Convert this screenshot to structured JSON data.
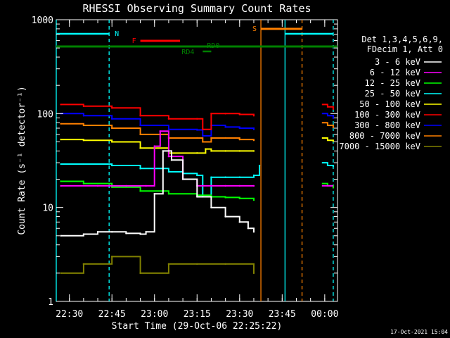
{
  "chart_data": {
    "type": "line",
    "title": "RHESSI Observing Summary Count Rates",
    "xlabel": "Start Time (29-Oct-06 22:25:22)",
    "ylabel": "Count Rate (s⁻¹ detector⁻¹)",
    "y_scale": "log",
    "ylim": [
      1,
      1000
    ],
    "xlim": [
      "22:25:22",
      "00:04:30"
    ],
    "y_ticks": [
      "1",
      "10",
      "100",
      "1000"
    ],
    "x_ticks": [
      "22:30",
      "22:45",
      "23:00",
      "23:15",
      "23:30",
      "23:45",
      "00:00"
    ],
    "footer_date": "17-Oct-2021 15:04",
    "legend_header": [
      "Det 1,3,4,5,6,9,",
      "FDecim 1, Att 0"
    ],
    "legend_position": "right",
    "series": [
      {
        "name": "3 - 6 keV",
        "color": "#ffffff",
        "x": [
          "22:27",
          "22:35",
          "22:40",
          "22:45",
          "22:50",
          "22:55",
          "22:57",
          "23:00",
          "23:03",
          "23:06",
          "23:10",
          "23:15",
          "23:20",
          "23:25",
          "23:30",
          "23:33",
          "23:35"
        ],
        "y": [
          5,
          5.2,
          5.5,
          5.5,
          5.3,
          5.2,
          5.5,
          14,
          40,
          32,
          20,
          13,
          10,
          8,
          7,
          6,
          5.5
        ]
      },
      {
        "name": "6 - 12 keV",
        "color": "#ff00ff",
        "x": [
          "22:27",
          "22:40",
          "22:50",
          "22:57",
          "23:00",
          "23:02",
          "23:05",
          "23:10",
          "23:15",
          "23:20",
          "23:25",
          "23:30",
          "23:35"
        ],
        "y": [
          17,
          17,
          17,
          17,
          45,
          65,
          35,
          20,
          17,
          17,
          17,
          17,
          17
        ]
      },
      {
        "name": "12 - 25 keV",
        "color": "#00ff00",
        "x": [
          "22:27",
          "22:35",
          "22:45",
          "22:55",
          "23:05",
          "23:15",
          "23:20",
          "23:25",
          "23:30",
          "23:35"
        ],
        "y": [
          19,
          18,
          16.5,
          15,
          14,
          13.5,
          13,
          12.8,
          12.5,
          12
        ]
      },
      {
        "name": "25 - 50 keV",
        "color": "#00ffff",
        "x": [
          "22:27",
          "22:35",
          "22:45",
          "22:55",
          "23:05",
          "23:10",
          "23:15",
          "23:17",
          "23:20",
          "23:25",
          "23:30",
          "23:35",
          "23:37"
        ],
        "y": [
          29,
          29,
          28,
          26,
          24,
          23,
          22,
          13,
          21,
          21,
          21,
          22,
          28
        ]
      },
      {
        "name": "50 - 100 keV",
        "color": "#ffff00",
        "x": [
          "22:27",
          "22:35",
          "22:45",
          "22:55",
          "23:05",
          "23:15",
          "23:18",
          "23:20",
          "23:25",
          "23:30",
          "23:35"
        ],
        "y": [
          53,
          52,
          50,
          43,
          38,
          38,
          42,
          40,
          40,
          40,
          40
        ]
      },
      {
        "name": "100 - 300 keV",
        "color": "#ff0000",
        "x": [
          "22:27",
          "22:35",
          "22:45",
          "22:55",
          "23:05",
          "23:15",
          "23:17",
          "23:20",
          "23:25",
          "23:30",
          "23:35"
        ],
        "y": [
          125,
          120,
          115,
          95,
          88,
          88,
          68,
          100,
          100,
          98,
          95
        ]
      },
      {
        "name": "300 - 800 keV",
        "color": "#0000ff",
        "x": [
          "22:27",
          "22:35",
          "22:45",
          "22:55",
          "23:05",
          "23:15",
          "23:17",
          "23:20",
          "23:25",
          "23:30",
          "23:35"
        ],
        "y": [
          100,
          95,
          88,
          75,
          68,
          67,
          58,
          75,
          72,
          70,
          68
        ]
      },
      {
        "name": "800 - 7000 keV",
        "color": "#ff8000",
        "x": [
          "22:27",
          "22:35",
          "22:45",
          "22:55",
          "23:05",
          "23:15",
          "23:17",
          "23:20",
          "23:25",
          "23:30",
          "23:35"
        ],
        "y": [
          78,
          75,
          70,
          60,
          55,
          55,
          50,
          55,
          55,
          53,
          52
        ]
      },
      {
        "name": "7000 - 15000 keV",
        "color": "#808000",
        "x": [
          "22:27",
          "22:35",
          "22:45",
          "22:55",
          "23:05",
          "23:15",
          "23:25",
          "23:35"
        ],
        "y": [
          2,
          2.5,
          3,
          2,
          2.5,
          2.5,
          2.5,
          2
        ]
      }
    ],
    "tail_series": {
      "x": [
        "23:59",
        "00:01",
        "00:03"
      ],
      "3 - 6 keV": [
        null,
        null,
        null
      ],
      "100 - 300 keV": [
        125,
        118,
        110
      ],
      "300 - 800 keV": [
        100,
        95,
        88
      ],
      "800 - 7000 keV": [
        80,
        75,
        70
      ],
      "50 - 100 keV": [
        55,
        52,
        50
      ],
      "25 - 50 keV": [
        30,
        28,
        27
      ],
      "12 - 25 keV": [
        18,
        17,
        16
      ],
      "6 - 12 keV": [
        17,
        17,
        17
      ]
    },
    "markers": {
      "N": {
        "color": "#00ffff",
        "spans": [
          [
            "22:25:22",
            "22:44:00"
          ],
          [
            "23:46:00",
            "00:03:00"
          ]
        ]
      },
      "S": {
        "color": "#ff8000",
        "span": [
          "23:37:30",
          "23:52:00"
        ]
      },
      "F": {
        "color": "#ff0000",
        "span": [
          "22:55:00",
          "23:09:00"
        ]
      },
      "RD0": {
        "color": "#008000",
        "span": [
          "22:25:22",
          "00:04:30"
        ]
      },
      "RD4": {
        "color": "#008000",
        "span": [
          "23:17:00",
          "23:20:00"
        ]
      }
    },
    "vertical_lines": [
      {
        "time": "22:25:22",
        "color": "#00ffff",
        "style": "solid"
      },
      {
        "time": "22:44:00",
        "color": "#00ffff",
        "style": "dashed"
      },
      {
        "time": "23:37:30",
        "color": "#ff8000",
        "style": "solid"
      },
      {
        "time": "23:46:00",
        "color": "#00ffff",
        "style": "solid"
      },
      {
        "time": "23:52:00",
        "color": "#ff8000",
        "style": "dashed"
      },
      {
        "time": "00:03:00",
        "color": "#00ffff",
        "style": "dashed"
      }
    ]
  }
}
